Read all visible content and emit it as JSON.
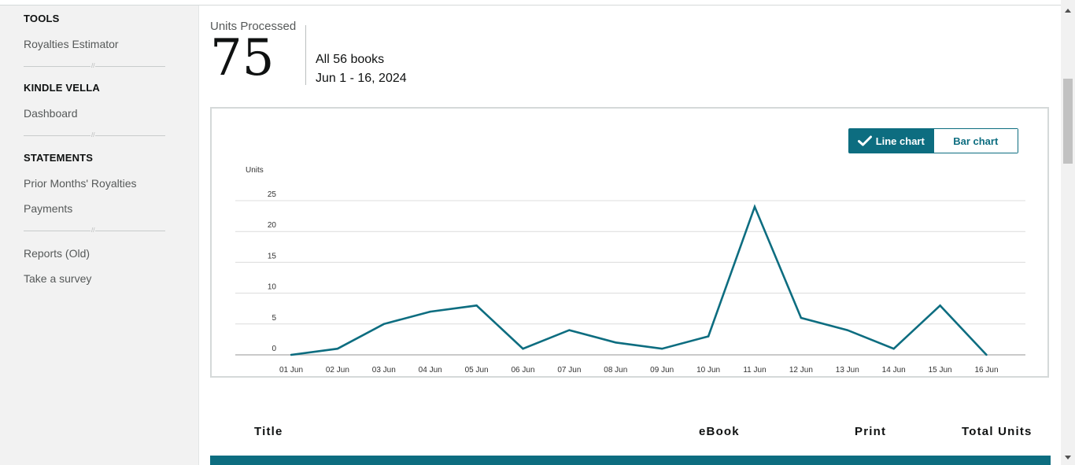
{
  "sidebar": {
    "sections": [
      {
        "heading": "TOOLS",
        "links": [
          "Royalties Estimator"
        ]
      },
      {
        "heading": "KINDLE VELLA",
        "links": [
          "Dashboard"
        ]
      },
      {
        "heading": "STATEMENTS",
        "links": [
          "Prior Months' Royalties",
          "Payments"
        ]
      },
      {
        "heading": "",
        "links": [
          "Reports (Old)",
          "Take a survey"
        ]
      }
    ]
  },
  "summary": {
    "label": "Units Processed",
    "value": "75",
    "books": "All 56 books",
    "range": "Jun 1 - 16, 2024"
  },
  "chart_toggle": {
    "line_label": "Line chart",
    "bar_label": "Bar chart",
    "active": "line"
  },
  "chart_data": {
    "type": "line",
    "ylabel": "Units",
    "ylim": [
      0,
      25
    ],
    "yticks": [
      0,
      5,
      10,
      15,
      20,
      25
    ],
    "grid": true,
    "categories": [
      "01 Jun",
      "02 Jun",
      "03 Jun",
      "04 Jun",
      "05 Jun",
      "06 Jun",
      "07 Jun",
      "08 Jun",
      "09 Jun",
      "10 Jun",
      "11 Jun",
      "12 Jun",
      "13 Jun",
      "14 Jun",
      "15 Jun",
      "16 Jun"
    ],
    "series": [
      {
        "values": [
          0,
          1,
          5,
          7,
          8,
          1,
          4,
          2,
          1,
          3,
          24,
          6,
          4,
          1,
          8,
          0
        ],
        "color": "#0d6d80"
      }
    ]
  },
  "table": {
    "headers": {
      "title": "Title",
      "ebook": "eBook",
      "print": "Print",
      "total": "Total Units"
    },
    "header_bar_color": "#0d6d80"
  }
}
